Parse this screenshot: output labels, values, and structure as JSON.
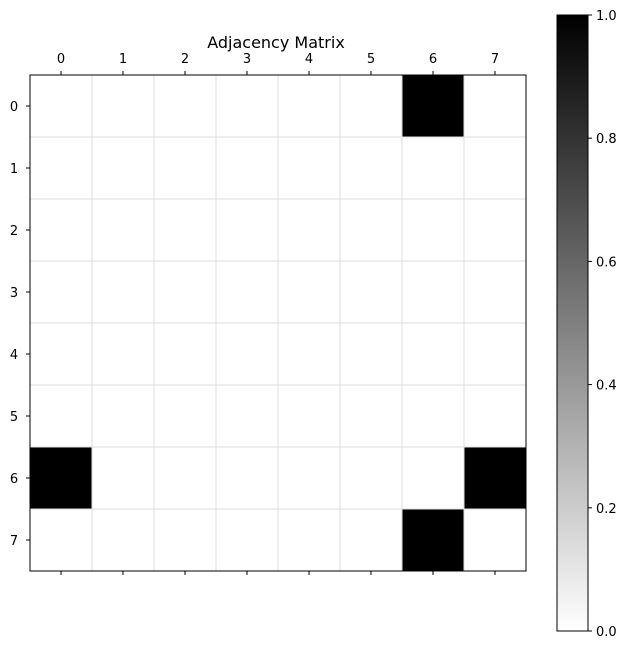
{
  "chart_data": {
    "type": "heatmap",
    "title": "Adjacency Matrix",
    "x_ticks": [
      "0",
      "1",
      "2",
      "3",
      "4",
      "5",
      "6",
      "7"
    ],
    "y_ticks": [
      "0",
      "1",
      "2",
      "3",
      "4",
      "5",
      "6",
      "7"
    ],
    "x_tick_position": "top",
    "matrix": [
      [
        0,
        0,
        0,
        0,
        0,
        0,
        1,
        0
      ],
      [
        0,
        0,
        0,
        0,
        0,
        0,
        0,
        0
      ],
      [
        0,
        0,
        0,
        0,
        0,
        0,
        0,
        0
      ],
      [
        0,
        0,
        0,
        0,
        0,
        0,
        0,
        0
      ],
      [
        0,
        0,
        0,
        0,
        0,
        0,
        0,
        0
      ],
      [
        0,
        0,
        0,
        0,
        0,
        0,
        0,
        0
      ],
      [
        1,
        0,
        0,
        0,
        0,
        0,
        0,
        1
      ],
      [
        0,
        0,
        0,
        0,
        0,
        0,
        1,
        0
      ]
    ],
    "grid": true,
    "colormap": "Greys",
    "colorbar": {
      "range": [
        0,
        1
      ],
      "ticks": [
        "0.0",
        "0.2",
        "0.4",
        "0.6",
        "0.8",
        "1.0"
      ],
      "tick_values": [
        0,
        0.2,
        0.4,
        0.6,
        0.8,
        1.0
      ],
      "location": "right"
    },
    "colors": {
      "low": "#ffffff",
      "high": "#000000",
      "grid": "#dddddd",
      "axis": "#000000"
    }
  }
}
